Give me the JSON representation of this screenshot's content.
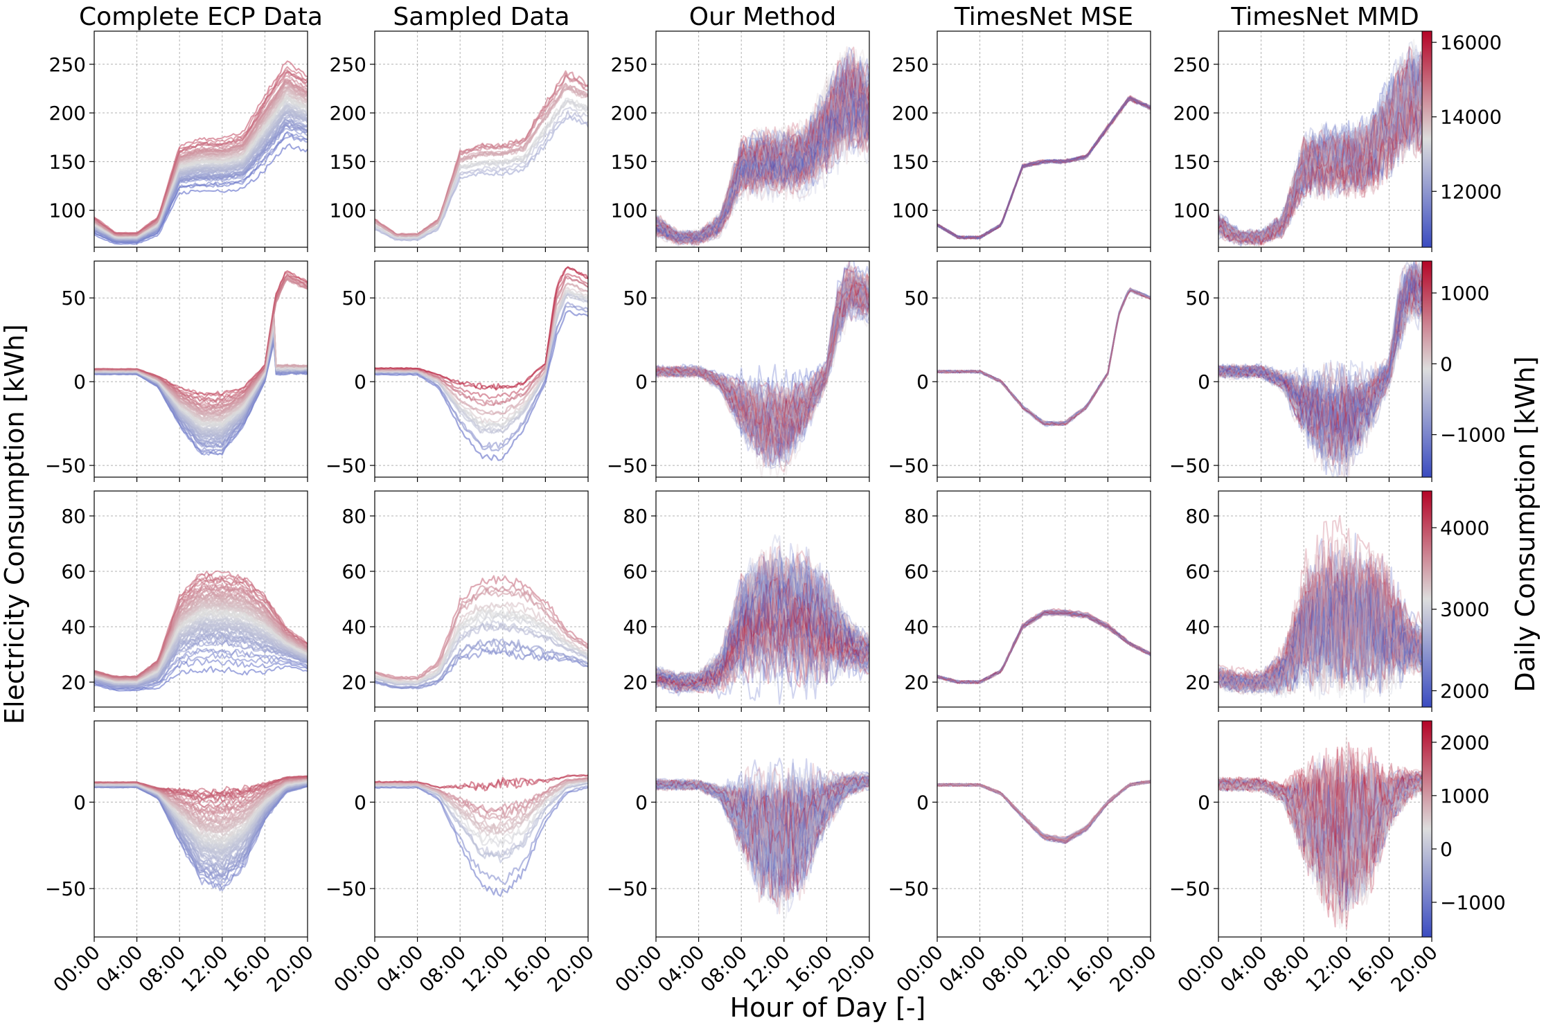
{
  "figure": {
    "column_titles": [
      "Complete ECP Data",
      "Sampled Data",
      "Our Method",
      "TimesNet MSE",
      "TimesNet MMD"
    ],
    "ylabel": "Electricity Consumption [kWh]",
    "xlabel": "Hour of Day [-]",
    "colorbar_label": "Daily Consumption [kWh]",
    "colormap": [
      "#3b4cc0",
      "#dddddd",
      "#b40426"
    ]
  },
  "chart_data": [
    {
      "type": "line",
      "row": 1,
      "x_ticks": [
        "00:00",
        "04:00",
        "08:00",
        "12:00",
        "16:00",
        "20:00"
      ],
      "ylim": [
        62,
        284
      ],
      "y_ticks": [
        100,
        150,
        200,
        250
      ],
      "grid": true,
      "colorbar": {
        "range": [
          10500,
          16300
        ],
        "ticks": [
          12000,
          14000,
          16000
        ]
      },
      "baseline_profile": {
        "hours": [
          0,
          2,
          4,
          6,
          8,
          10,
          12,
          14,
          16,
          18,
          20
        ],
        "values": [
          85,
          72,
          72,
          85,
          145,
          150,
          150,
          155,
          185,
          215,
          205
        ]
      },
      "profile_spread": {
        "hours": [
          0,
          2,
          4,
          6,
          8,
          10,
          12,
          14,
          16,
          18,
          20
        ],
        "values": [
          10,
          6,
          6,
          10,
          25,
          28,
          28,
          30,
          40,
          45,
          40
        ]
      },
      "methods": [
        "Complete ECP Data",
        "Sampled Data",
        "Our Method",
        "TimesNet MSE",
        "TimesNet MMD"
      ]
    },
    {
      "type": "line",
      "row": 2,
      "x_ticks": [
        "00:00",
        "04:00",
        "08:00",
        "12:00",
        "16:00",
        "20:00"
      ],
      "ylim": [
        -57,
        72
      ],
      "y_ticks": [
        -50,
        0,
        50
      ],
      "grid": true,
      "colorbar": {
        "range": [
          -1600,
          1450
        ],
        "ticks": [
          -1000,
          0,
          1000
        ]
      },
      "baseline_profile": {
        "hours": [
          0,
          2,
          4,
          6,
          8,
          10,
          12,
          14,
          16,
          17,
          18,
          20
        ],
        "values": [
          6,
          6,
          6,
          0,
          -15,
          -25,
          -25,
          -15,
          5,
          40,
          55,
          50
        ]
      },
      "profile_spread": {
        "hours": [
          0,
          2,
          4,
          6,
          8,
          10,
          12,
          14,
          16,
          17,
          18,
          20
        ],
        "values": [
          2,
          2,
          2,
          4,
          14,
          22,
          22,
          14,
          6,
          15,
          14,
          12
        ]
      },
      "methods": [
        "Complete ECP Data",
        "Sampled Data",
        "Our Method",
        "TimesNet MSE",
        "TimesNet MMD"
      ]
    },
    {
      "type": "line",
      "row": 3,
      "x_ticks": [
        "00:00",
        "04:00",
        "08:00",
        "12:00",
        "16:00",
        "20:00"
      ],
      "ylim": [
        11,
        89
      ],
      "y_ticks": [
        20,
        40,
        60,
        80
      ],
      "grid": true,
      "colorbar": {
        "range": [
          1800,
          4450
        ],
        "ticks": [
          2000,
          3000,
          4000
        ]
      },
      "baseline_profile": {
        "hours": [
          0,
          2,
          4,
          6,
          8,
          10,
          12,
          14,
          16,
          18,
          20
        ],
        "values": [
          22,
          20,
          20,
          24,
          40,
          45,
          45,
          44,
          40,
          34,
          30
        ]
      },
      "profile_spread": {
        "hours": [
          0,
          2,
          4,
          6,
          8,
          10,
          12,
          14,
          16,
          18,
          20
        ],
        "values": [
          3,
          3,
          3,
          6,
          16,
          20,
          20,
          20,
          16,
          8,
          6
        ]
      },
      "methods": [
        "Complete ECP Data",
        "Sampled Data",
        "Our Method",
        "TimesNet MSE",
        "TimesNet MMD"
      ]
    },
    {
      "type": "line",
      "row": 4,
      "x_ticks": [
        "00:00",
        "04:00",
        "08:00",
        "12:00",
        "16:00",
        "20:00"
      ],
      "ylim": [
        -78,
        47
      ],
      "y_ticks": [
        -50,
        0
      ],
      "grid": true,
      "colorbar": {
        "range": [
          -1650,
          2400
        ],
        "ticks": [
          -1000,
          0,
          1000,
          2000
        ]
      },
      "baseline_profile": {
        "hours": [
          0,
          2,
          4,
          6,
          8,
          10,
          12,
          14,
          16,
          18,
          20
        ],
        "values": [
          10,
          10,
          10,
          5,
          -8,
          -20,
          -22,
          -15,
          0,
          10,
          12
        ]
      },
      "profile_spread": {
        "hours": [
          0,
          2,
          4,
          6,
          8,
          10,
          12,
          14,
          16,
          18,
          20
        ],
        "values": [
          2,
          2,
          2,
          4,
          20,
          34,
          38,
          30,
          14,
          6,
          4
        ]
      },
      "methods": [
        "Complete ECP Data",
        "Sampled Data",
        "Our Method",
        "TimesNet MSE",
        "TimesNet MMD"
      ]
    }
  ]
}
